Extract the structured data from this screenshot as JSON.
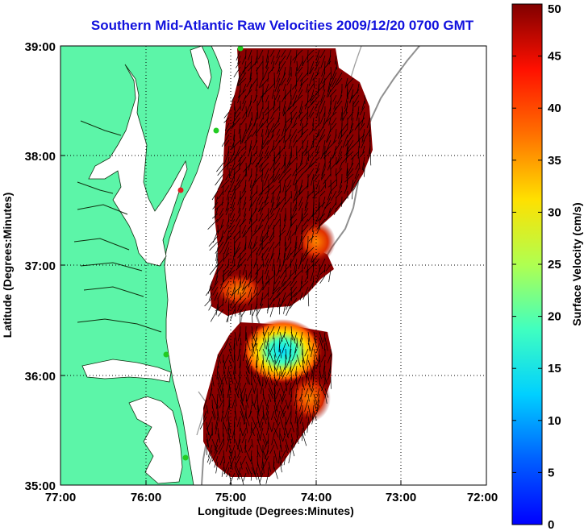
{
  "title": "Southern Mid-Atlantic Raw Velocities 2009/12/20 0700 GMT",
  "map": {
    "xlabel": "Longitude (Degrees:Minutes)",
    "ylabel": "Latitude (Degrees:Minutes)",
    "x_ticks": [
      "77:00",
      "76:00",
      "75:00",
      "74:00",
      "73:00",
      "72:00"
    ],
    "y_ticks": [
      "39:00",
      "38:00",
      "37:00",
      "36:00",
      "35:00"
    ],
    "lon_range": [
      -77,
      -72
    ],
    "lat_range": [
      35,
      39
    ],
    "land_color": "#5cf5a8",
    "vector_color": "#000000",
    "station_color": "#22cc22",
    "highlight_station_color": "#e02020"
  },
  "colorbar": {
    "label": "Surface Velocity (cm/s)",
    "ticks": [
      "50",
      "45",
      "40",
      "35",
      "30",
      "25",
      "20",
      "15",
      "10",
      "5",
      "0"
    ],
    "range": [
      0,
      50
    ],
    "colormap": "jet"
  }
}
